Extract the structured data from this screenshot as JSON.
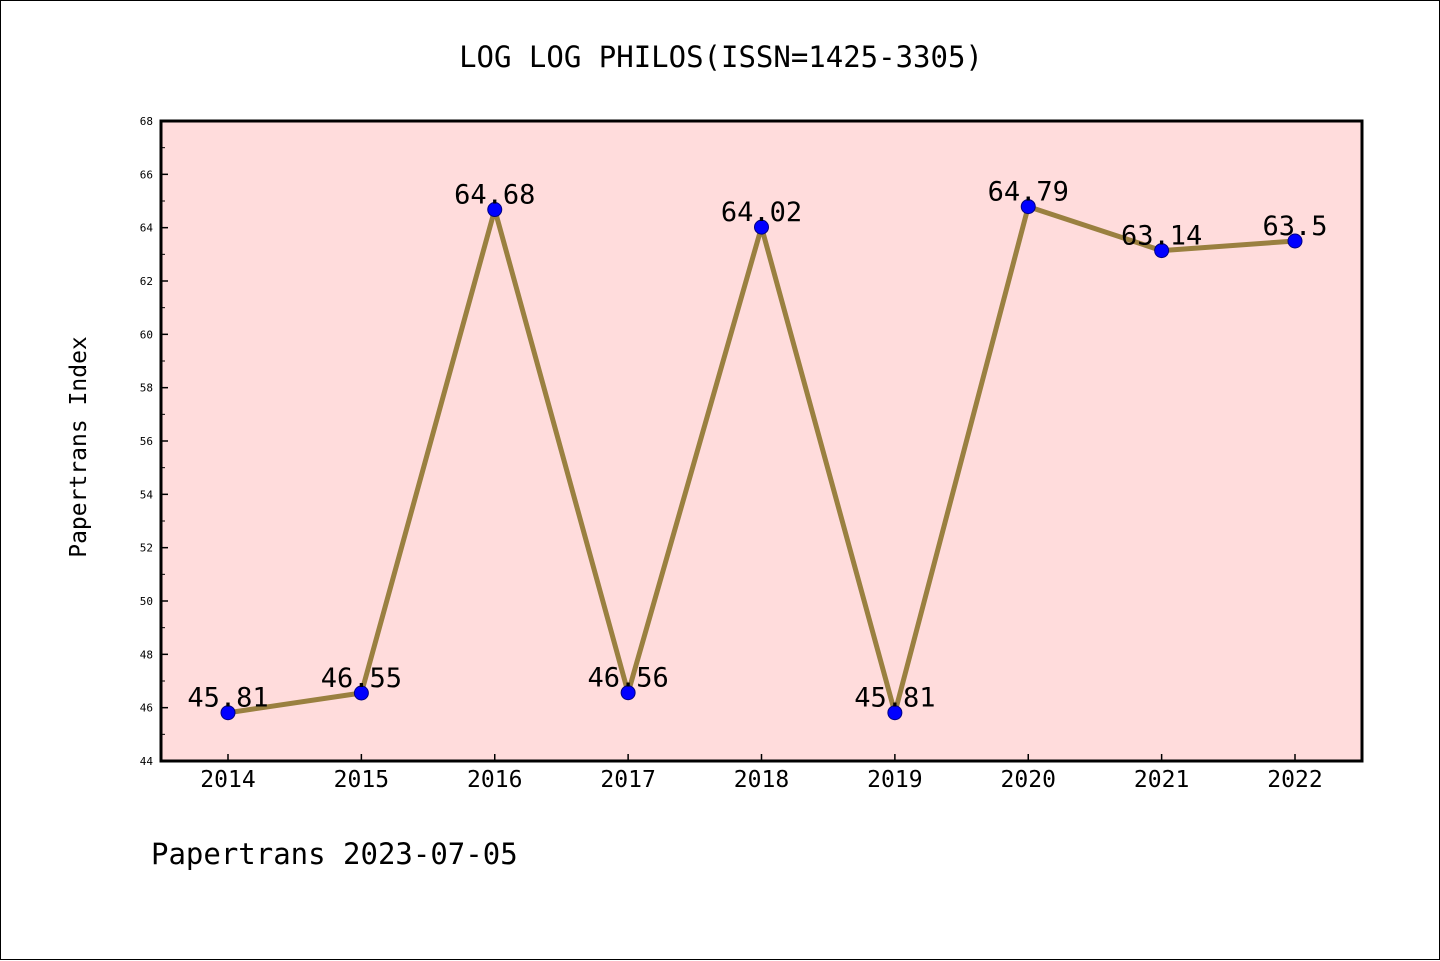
{
  "chart_data": {
    "type": "line",
    "title": "LOG LOG PHILOS(ISSN=1425-3305)",
    "ylabel": "Papertrans Index",
    "xlabel": "",
    "footer": "Papertrans 2023-07-05",
    "categories": [
      "2014",
      "2015",
      "2016",
      "2017",
      "2018",
      "2019",
      "2020",
      "2021",
      "2022"
    ],
    "values": [
      45.81,
      46.55,
      64.68,
      46.56,
      64.02,
      45.81,
      64.79,
      63.14,
      63.5
    ],
    "value_labels": [
      "45.81",
      "46.55",
      "64.68",
      "46.56",
      "64.02",
      "45.81",
      "64.79",
      "63.14",
      "63.5"
    ],
    "ylim": [
      44,
      68
    ],
    "yticks": [
      44,
      46,
      48,
      50,
      52,
      54,
      56,
      58,
      60,
      62,
      64,
      66,
      68
    ],
    "grid": false,
    "colors": {
      "plot_background": "#ffdcdc",
      "line": "#9a8040",
      "marker": "#0000ff",
      "marker_edge": "#000080"
    }
  }
}
